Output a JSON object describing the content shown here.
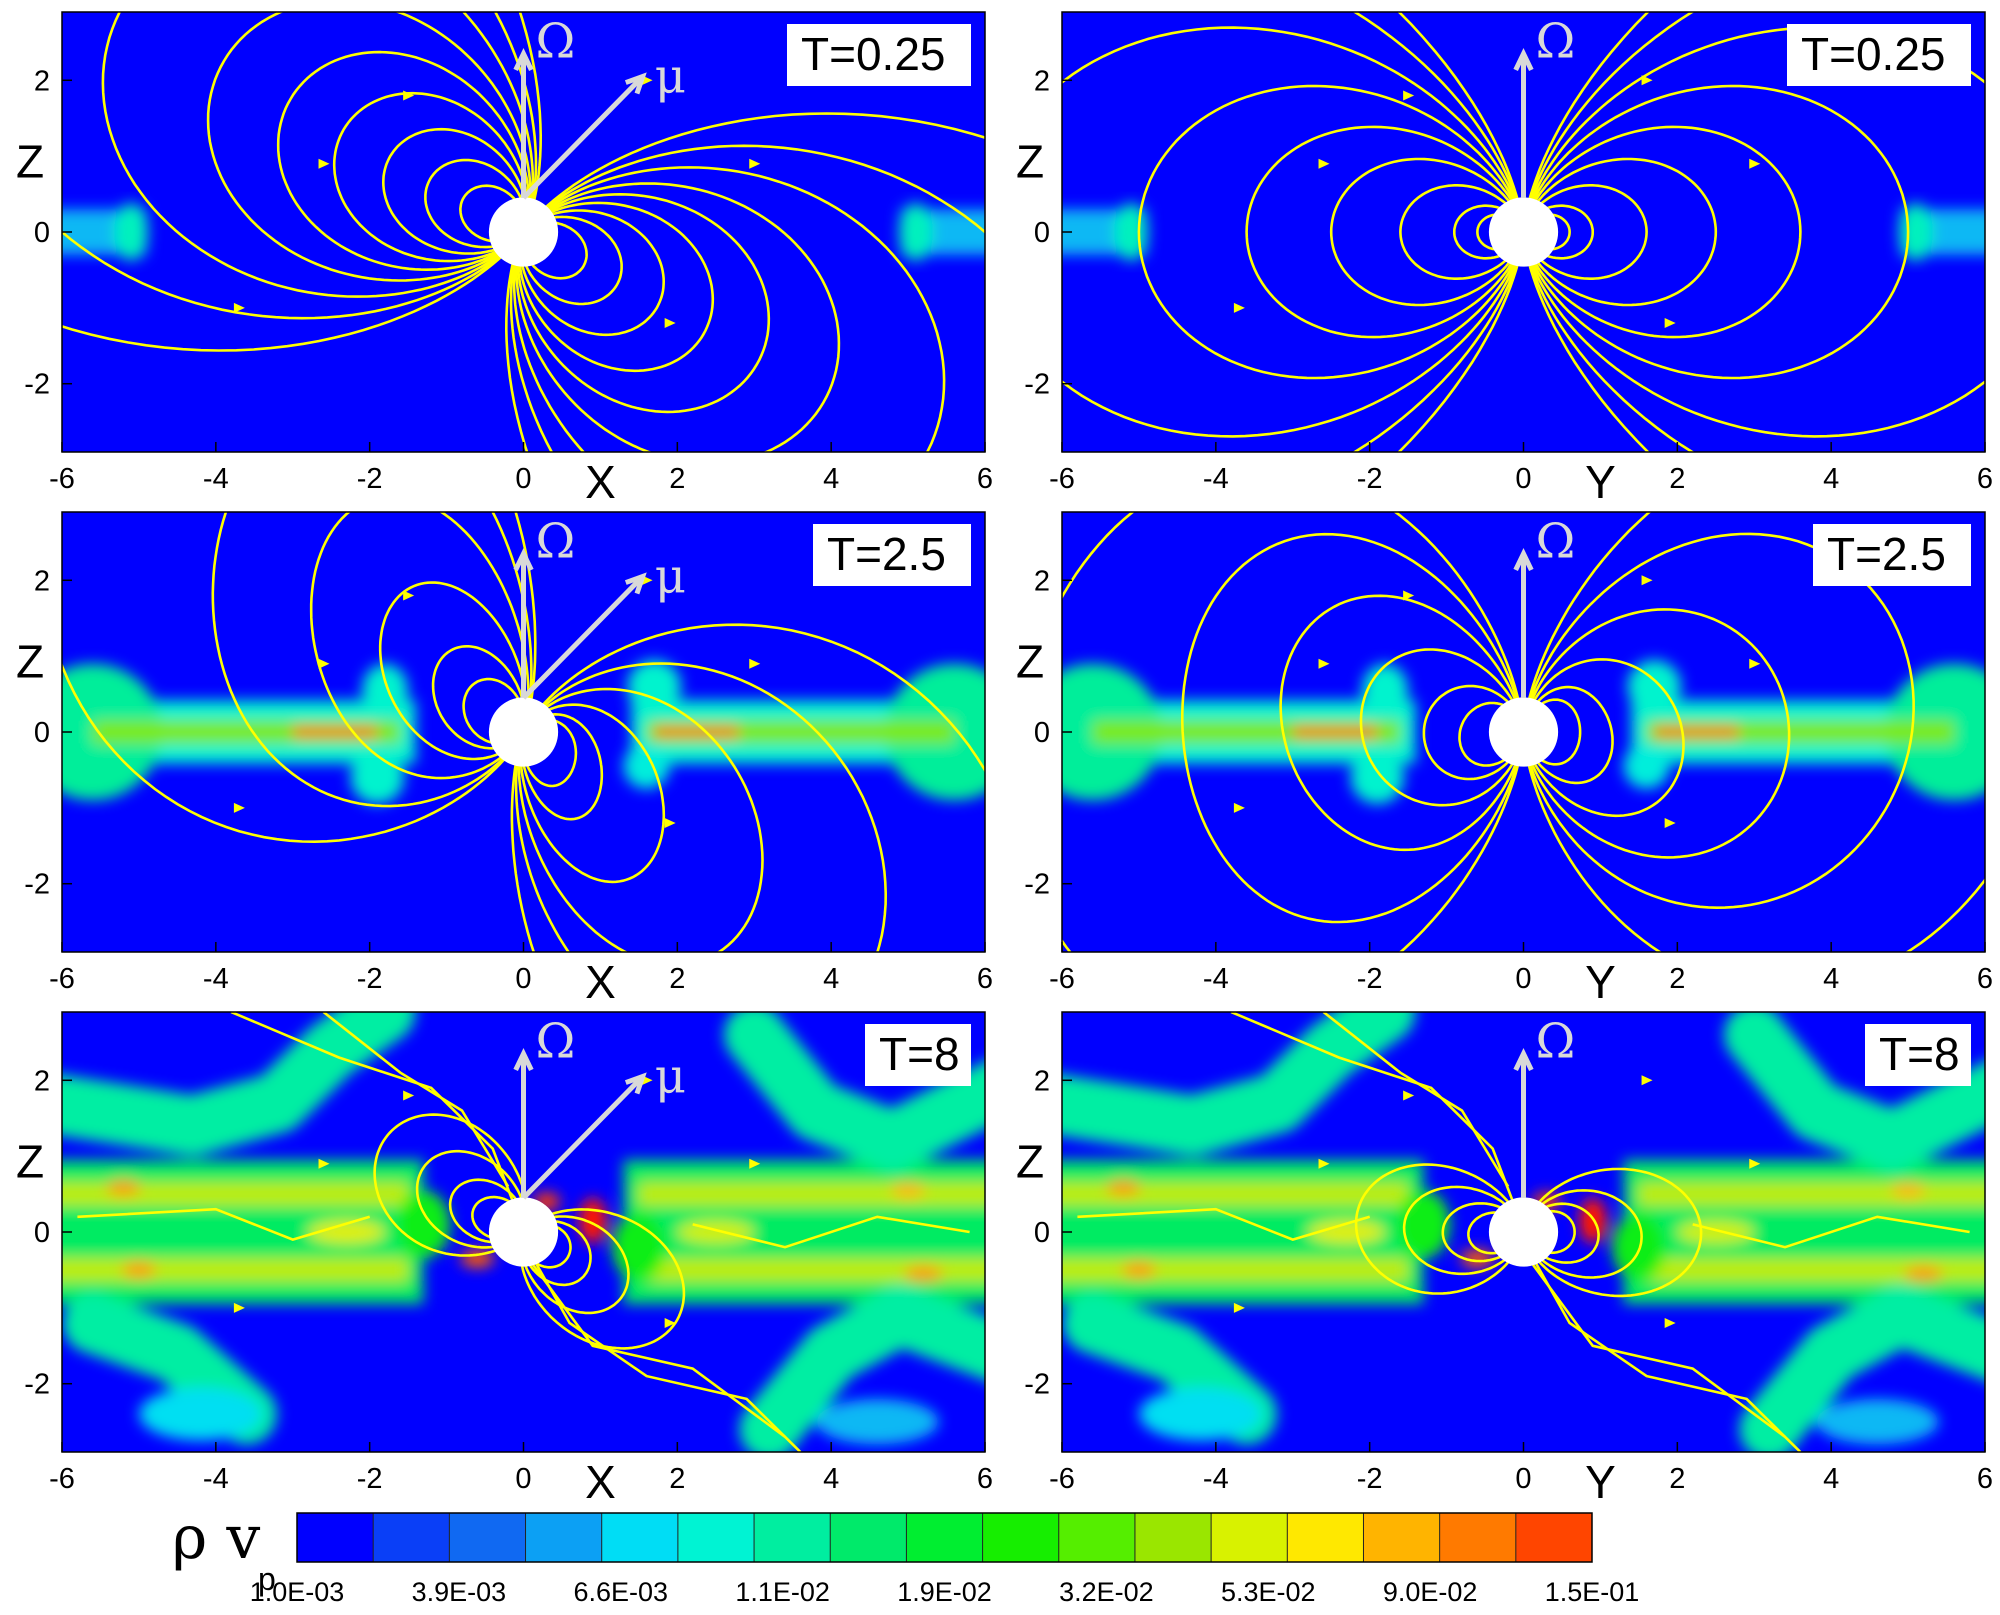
{
  "chart_data": [
    {
      "type": "heatmap",
      "panel": "top-left",
      "time_label": "T=0.25",
      "xlabel": "X",
      "ylabel": "Z",
      "xlim": [
        -6,
        6
      ],
      "ylim": [
        -2.9,
        2.9
      ],
      "xticks": [
        -6,
        -4,
        -2,
        0,
        2,
        4,
        6
      ],
      "yticks": [
        -2,
        0,
        2
      ],
      "vectors": [
        "Ω",
        "μ"
      ],
      "disk_state": "thin-inner-edge",
      "field_lines": "inclined-dipole"
    },
    {
      "type": "heatmap",
      "panel": "top-right",
      "time_label": "T=0.25",
      "xlabel": "Y",
      "ylabel": "Z",
      "xlim": [
        -6,
        6
      ],
      "ylim": [
        -2.9,
        2.9
      ],
      "xticks": [
        -6,
        -4,
        -2,
        0,
        2,
        4,
        6
      ],
      "yticks": [
        -2,
        0,
        2
      ],
      "vectors": [
        "Ω"
      ],
      "disk_state": "thin-inner-edge",
      "field_lines": "symmetric-dipole"
    },
    {
      "type": "heatmap",
      "panel": "middle-left",
      "time_label": "T=2.5",
      "xlabel": "X",
      "ylabel": "Z",
      "xlim": [
        -6,
        6
      ],
      "ylim": [
        -2.9,
        2.9
      ],
      "xticks": [
        -6,
        -4,
        -2,
        0,
        2,
        4,
        6
      ],
      "yticks": [
        -2,
        0,
        2
      ],
      "vectors": [
        "Ω",
        "μ"
      ],
      "disk_state": "thin-disk",
      "field_lines": "inflated"
    },
    {
      "type": "heatmap",
      "panel": "middle-right",
      "time_label": "T=2.5",
      "xlabel": "Y",
      "ylabel": "Z",
      "xlim": [
        -6,
        6
      ],
      "ylim": [
        -2.9,
        2.9
      ],
      "xticks": [
        -6,
        -4,
        -2,
        0,
        2,
        4,
        6
      ],
      "yticks": [
        -2,
        0,
        2
      ],
      "vectors": [
        "Ω"
      ],
      "disk_state": "thin-disk",
      "field_lines": "inflated"
    },
    {
      "type": "heatmap",
      "panel": "bottom-left",
      "time_label": "T=8",
      "xlabel": "X",
      "ylabel": "Z",
      "xlim": [
        -6,
        6
      ],
      "ylim": [
        -2.9,
        2.9
      ],
      "xticks": [
        -6,
        -4,
        -2,
        0,
        2,
        4,
        6
      ],
      "yticks": [
        -2,
        0,
        2
      ],
      "vectors": [
        "Ω",
        "μ"
      ],
      "disk_state": "thick-turbulent",
      "field_lines": "open-twisted"
    },
    {
      "type": "heatmap",
      "panel": "bottom-right",
      "time_label": "T=8",
      "xlabel": "Y",
      "ylabel": "Z",
      "xlim": [
        -6,
        6
      ],
      "ylim": [
        -2.9,
        2.9
      ],
      "xticks": [
        -6,
        -4,
        -2,
        0,
        2,
        4,
        6
      ],
      "yticks": [
        -2,
        0,
        2
      ],
      "vectors": [
        "Ω"
      ],
      "disk_state": "thick-turbulent",
      "field_lines": "open-twisted"
    }
  ],
  "colorbar": {
    "symbol": "ρ v",
    "subscript": "p",
    "levels": 17,
    "colors": [
      "#0000ff",
      "#0a3ff7",
      "#1069f2",
      "#0ca0f4",
      "#00ddf5",
      "#00f3d3",
      "#00eea0",
      "#00ea6a",
      "#00ee30",
      "#16ee00",
      "#55ee00",
      "#9ae600",
      "#d8f200",
      "#ffe800",
      "#ffb400",
      "#ff7a00",
      "#ff4500",
      "#ff0000"
    ],
    "tick_labels": [
      "1.0E-03",
      "3.9E-03",
      "6.6E-03",
      "1.1E-02",
      "1.9E-02",
      "3.2E-02",
      "5.3E-02",
      "9.0E-02",
      "1.5E-01"
    ]
  },
  "colors": {
    "background": "#0000ff",
    "field_line": "#ffff00",
    "vector": "#d8d8d8",
    "star": "#ffffff"
  }
}
